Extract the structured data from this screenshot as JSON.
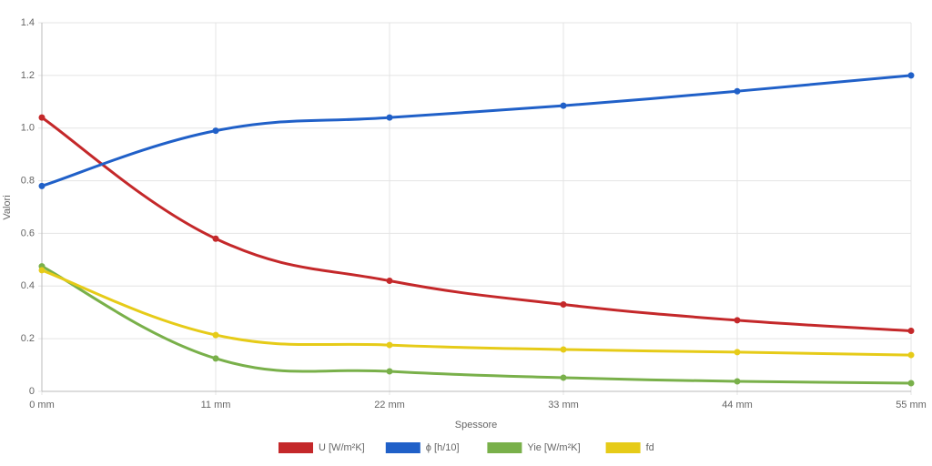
{
  "chart_data": {
    "type": "line",
    "x_label": "Spessore",
    "y_label": "Valori",
    "categories": [
      "0 mm",
      "11 mm",
      "22 mm",
      "33 mm",
      "44 mm",
      "55 mm"
    ],
    "series": [
      {
        "name": "U [W/m²K]",
        "color": "#c4282a",
        "values": [
          1.04,
          0.58,
          0.42,
          0.33,
          0.27,
          0.23
        ]
      },
      {
        "name": "ϕ [h/10]",
        "color": "#2060c8",
        "values": [
          0.78,
          0.99,
          1.04,
          1.085,
          1.14,
          1.2
        ]
      },
      {
        "name": "Yie [W/m²K]",
        "color": "#79b04a",
        "values": [
          0.475,
          0.125,
          0.076,
          0.052,
          0.038,
          0.031
        ]
      },
      {
        "name": "fd",
        "color": "#e6cb18",
        "values": [
          0.46,
          0.214,
          0.176,
          0.159,
          0.149,
          0.138
        ]
      }
    ],
    "ylim": [
      0,
      1.4
    ],
    "yticks": [
      0,
      0.2,
      0.4,
      0.6,
      0.8,
      {
        "value": 1,
        "label": "1.0"
      },
      1.2,
      1.4
    ],
    "grid": true,
    "legend": "bottom"
  }
}
